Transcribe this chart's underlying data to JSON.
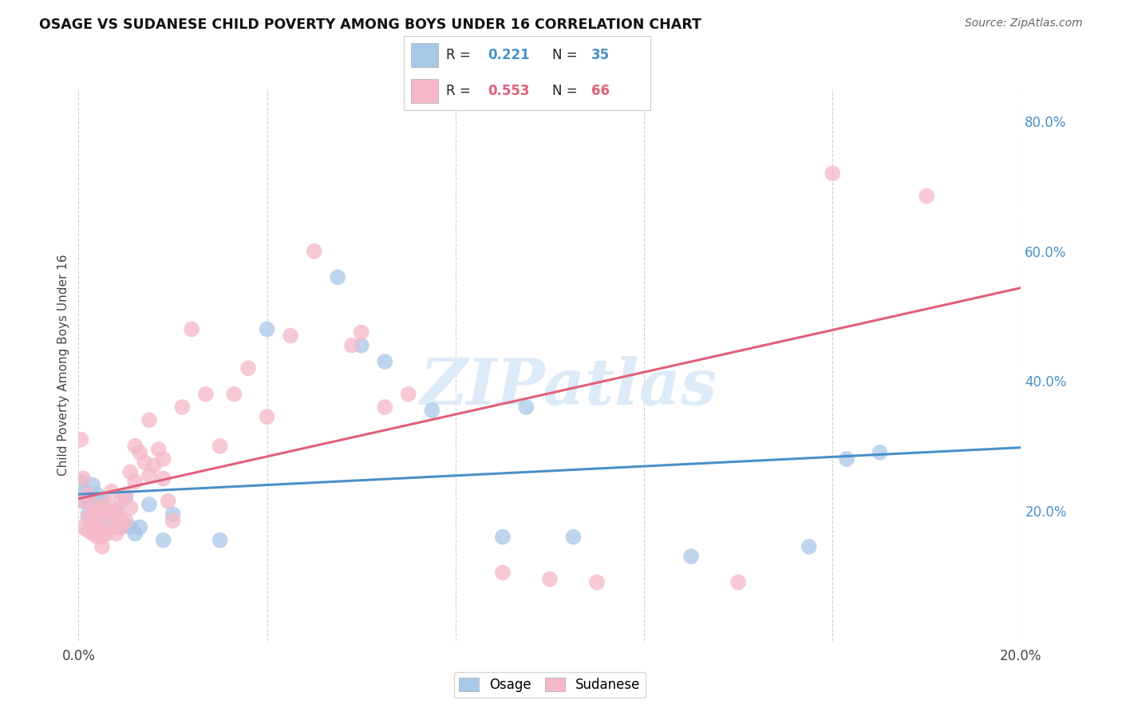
{
  "title": "OSAGE VS SUDANESE CHILD POVERTY AMONG BOYS UNDER 16 CORRELATION CHART",
  "source": "Source: ZipAtlas.com",
  "ylabel": "Child Poverty Among Boys Under 16",
  "watermark": "ZIPatlas",
  "osage_R": "0.221",
  "osage_N": "35",
  "sudanese_R": "0.553",
  "sudanese_N": "66",
  "osage_color": "#a8c8e8",
  "sudanese_color": "#f5b8c8",
  "osage_line_color": "#4a90c8",
  "sudanese_line_color": "#e0607a",
  "background_color": "#ffffff",
  "grid_color": "#cccccc",
  "xlim": [
    0.0,
    0.2
  ],
  "ylim": [
    0.0,
    0.85
  ],
  "osage_x": [
    0.0005,
    0.001,
    0.0015,
    0.002,
    0.002,
    0.003,
    0.003,
    0.004,
    0.004,
    0.005,
    0.005,
    0.006,
    0.007,
    0.008,
    0.009,
    0.01,
    0.011,
    0.012,
    0.013,
    0.015,
    0.018,
    0.02,
    0.03,
    0.04,
    0.055,
    0.06,
    0.065,
    0.075,
    0.09,
    0.095,
    0.105,
    0.13,
    0.155,
    0.163,
    0.17
  ],
  "osage_y": [
    0.245,
    0.215,
    0.23,
    0.195,
    0.22,
    0.21,
    0.24,
    0.205,
    0.225,
    0.195,
    0.215,
    0.19,
    0.185,
    0.2,
    0.175,
    0.22,
    0.175,
    0.165,
    0.175,
    0.21,
    0.155,
    0.195,
    0.155,
    0.48,
    0.56,
    0.455,
    0.43,
    0.355,
    0.16,
    0.36,
    0.16,
    0.13,
    0.145,
    0.28,
    0.29
  ],
  "sudanese_x": [
    0.0005,
    0.001,
    0.001,
    0.001,
    0.002,
    0.002,
    0.002,
    0.003,
    0.003,
    0.003,
    0.003,
    0.004,
    0.004,
    0.004,
    0.004,
    0.005,
    0.005,
    0.005,
    0.005,
    0.006,
    0.006,
    0.006,
    0.007,
    0.007,
    0.007,
    0.008,
    0.008,
    0.008,
    0.009,
    0.009,
    0.009,
    0.01,
    0.01,
    0.011,
    0.011,
    0.012,
    0.012,
    0.013,
    0.014,
    0.015,
    0.015,
    0.016,
    0.017,
    0.018,
    0.018,
    0.019,
    0.02,
    0.022,
    0.024,
    0.027,
    0.03,
    0.033,
    0.036,
    0.04,
    0.045,
    0.05,
    0.058,
    0.06,
    0.065,
    0.07,
    0.09,
    0.1,
    0.11,
    0.14,
    0.16,
    0.18
  ],
  "sudanese_y": [
    0.31,
    0.215,
    0.25,
    0.175,
    0.19,
    0.225,
    0.17,
    0.21,
    0.195,
    0.165,
    0.175,
    0.185,
    0.2,
    0.175,
    0.16,
    0.145,
    0.205,
    0.17,
    0.16,
    0.165,
    0.2,
    0.21,
    0.23,
    0.195,
    0.18,
    0.2,
    0.175,
    0.165,
    0.215,
    0.185,
    0.175,
    0.225,
    0.185,
    0.205,
    0.26,
    0.245,
    0.3,
    0.29,
    0.275,
    0.34,
    0.255,
    0.27,
    0.295,
    0.25,
    0.28,
    0.215,
    0.185,
    0.36,
    0.48,
    0.38,
    0.3,
    0.38,
    0.42,
    0.345,
    0.47,
    0.6,
    0.455,
    0.475,
    0.36,
    0.38,
    0.105,
    0.095,
    0.09,
    0.09,
    0.72,
    0.685
  ]
}
